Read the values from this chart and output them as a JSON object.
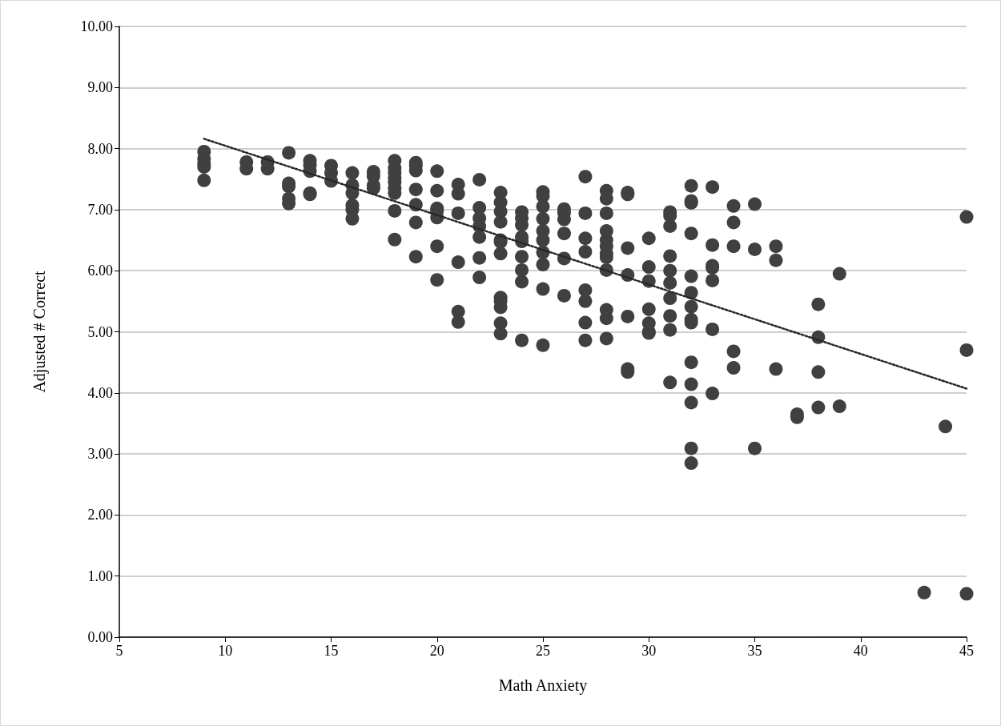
{
  "chart_data": {
    "type": "scatter",
    "xlabel": "Math Anxiety",
    "ylabel": "Adjusted # Correct",
    "xlim": [
      5,
      45
    ],
    "xticks": [
      5,
      10,
      15,
      20,
      25,
      30,
      35,
      40,
      45
    ],
    "ylim": [
      0,
      10
    ],
    "yticks": [
      {
        "value": 0,
        "label": "0.00"
      },
      {
        "value": 1,
        "label": "1.00"
      },
      {
        "value": 2,
        "label": "2.00"
      },
      {
        "value": 3,
        "label": "3.00"
      },
      {
        "value": 4,
        "label": "4.00"
      },
      {
        "value": 5,
        "label": "5.00"
      },
      {
        "value": 6,
        "label": "6.00"
      },
      {
        "value": 7,
        "label": "7.00"
      },
      {
        "value": 8,
        "label": "8.00"
      },
      {
        "value": 9,
        "label": "9.00"
      },
      {
        "value": 10,
        "label": "10.00"
      }
    ],
    "grid": "y",
    "marker": "circle",
    "series": [
      {
        "color": "#404040",
        "x": [
          9,
          9,
          9,
          9,
          9,
          11,
          11,
          12,
          12,
          13,
          13,
          13,
          13,
          13,
          14,
          14,
          14,
          14,
          14,
          15,
          15,
          15,
          16,
          16,
          16,
          16,
          16,
          16,
          17,
          17,
          17,
          17,
          18,
          18,
          18,
          18,
          18,
          18,
          18,
          18,
          18,
          19,
          19,
          19,
          19,
          19,
          19,
          19,
          20,
          20,
          20,
          20,
          20,
          20,
          20,
          21,
          21,
          21,
          21,
          21,
          21,
          22,
          22,
          22,
          22,
          22,
          22,
          22,
          23,
          23,
          23,
          23,
          23,
          23,
          23,
          23,
          23,
          23,
          23,
          23,
          24,
          24,
          24,
          24,
          24,
          24,
          24,
          24,
          24,
          25,
          25,
          25,
          25,
          25,
          25,
          25,
          25,
          25,
          25,
          26,
          26,
          26,
          26,
          26,
          26,
          27,
          27,
          27,
          27,
          27,
          27,
          27,
          27,
          28,
          28,
          28,
          28,
          28,
          28,
          28,
          28,
          28,
          28,
          28,
          28,
          29,
          29,
          29,
          29,
          29,
          29,
          29,
          30,
          30,
          30,
          30,
          30,
          30,
          30,
          31,
          31,
          31,
          31,
          31,
          31,
          31,
          31,
          31,
          31,
          32,
          32,
          32,
          32,
          32,
          32,
          32,
          32,
          32,
          32,
          32,
          32,
          32,
          32,
          33,
          33,
          33,
          33,
          33,
          33,
          33,
          34,
          34,
          34,
          34,
          34,
          35,
          35,
          35,
          36,
          36,
          36,
          37,
          37,
          38,
          38,
          38,
          38,
          39,
          39,
          43,
          44,
          45,
          45,
          45
        ],
        "values": [
          7.95,
          7.83,
          7.75,
          7.7,
          7.48,
          7.78,
          7.67,
          7.78,
          7.67,
          7.93,
          7.43,
          7.38,
          7.18,
          7.1,
          7.8,
          7.73,
          7.63,
          7.27,
          7.25,
          7.72,
          7.6,
          7.47,
          7.6,
          7.4,
          7.27,
          7.07,
          7.0,
          6.85,
          7.62,
          7.55,
          7.4,
          7.35,
          7.8,
          7.68,
          7.6,
          7.52,
          7.45,
          7.35,
          7.27,
          6.98,
          6.51,
          7.77,
          7.72,
          7.64,
          7.33,
          7.08,
          6.79,
          6.23,
          7.63,
          7.31,
          7.02,
          6.98,
          6.87,
          6.4,
          5.85,
          7.41,
          7.26,
          6.94,
          6.14,
          5.33,
          5.16,
          7.49,
          7.03,
          6.86,
          6.73,
          6.55,
          6.21,
          5.89,
          7.28,
          7.12,
          6.97,
          6.8,
          6.5,
          6.47,
          6.28,
          5.56,
          5.5,
          5.4,
          5.14,
          4.97,
          6.96,
          6.86,
          6.75,
          6.55,
          6.48,
          6.23,
          6.01,
          5.82,
          4.86,
          7.29,
          7.22,
          7.05,
          6.85,
          6.65,
          6.5,
          6.3,
          6.1,
          5.7,
          4.78,
          7.01,
          6.95,
          6.84,
          6.61,
          6.2,
          5.59,
          7.54,
          6.94,
          6.53,
          6.31,
          5.68,
          5.5,
          5.15,
          4.86,
          7.31,
          7.18,
          6.94,
          6.65,
          6.5,
          6.4,
          6.28,
          6.22,
          6.01,
          5.36,
          5.22,
          4.89,
          7.28,
          7.25,
          6.37,
          5.93,
          5.25,
          4.39,
          4.34,
          6.53,
          6.06,
          5.83,
          5.37,
          5.14,
          5.0,
          4.98,
          6.96,
          6.9,
          6.73,
          6.24,
          6.0,
          5.8,
          5.55,
          5.26,
          5.03,
          4.17,
          7.39,
          7.14,
          7.11,
          6.61,
          5.91,
          5.64,
          5.41,
          5.2,
          5.15,
          4.5,
          4.14,
          3.84,
          3.09,
          2.85,
          7.37,
          6.42,
          6.08,
          6.05,
          5.84,
          5.04,
          3.99,
          7.06,
          6.79,
          6.4,
          4.68,
          4.41,
          7.09,
          6.35,
          3.09,
          6.4,
          6.17,
          4.39,
          3.65,
          3.6,
          5.45,
          4.91,
          4.34,
          3.76,
          5.95,
          3.78,
          0.73,
          3.45,
          6.88,
          4.7,
          0.71
        ]
      },
      {
        "type": "line",
        "color": "#262626",
        "line_style": "dotted",
        "marker": "none",
        "x": [
          9,
          45
        ],
        "values": [
          8.16,
          4.07
        ]
      }
    ]
  }
}
